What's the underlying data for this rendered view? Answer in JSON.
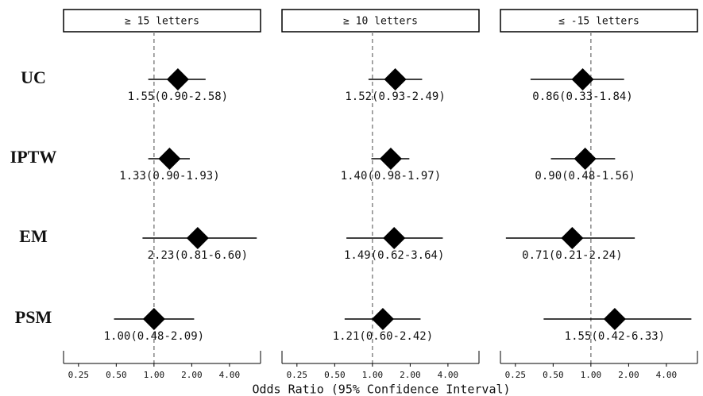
{
  "chart_data": {
    "type": "forest",
    "categories": [
      "UC",
      "IPTW",
      "EM",
      "PSM"
    ],
    "xlabel": "Odds Ratio (95% Confidence Interval)",
    "xlog": true,
    "xlim": [
      0.19,
      7.5
    ],
    "xticks": [
      0.25,
      {
        "value": 0.5,
        "label": "0.50"
      },
      {
        "value": 1,
        "label": "1.00"
      },
      {
        "value": 2,
        "label": "2.00"
      },
      {
        "value": 4,
        "label": "4.00"
      }
    ],
    "reference": 1,
    "color": "#000000",
    "panels": [
      {
        "title": "≥ 15 letters",
        "values": [
          1.55,
          1.33,
          2.23,
          1.0
        ],
        "lower": [
          0.9,
          0.9,
          0.81,
          0.48
        ],
        "upper": [
          2.58,
          1.93,
          6.6,
          2.09
        ],
        "value_labels": [
          "1.55(0.90-2.58)",
          "1.33(0.90-1.93)",
          "2.23(0.81-6.60)",
          "1.00(0.48-2.09)"
        ]
      },
      {
        "title": "≥ 10 letters",
        "values": [
          1.52,
          1.4,
          1.49,
          1.21
        ],
        "lower": [
          0.93,
          0.98,
          0.62,
          0.6
        ],
        "upper": [
          2.49,
          1.97,
          3.64,
          2.42
        ],
        "value_labels": [
          "1.52(0.93-2.49)",
          "1.40(0.98-1.97)",
          "1.49(0.62-3.64)",
          "1.21(0.60-2.42)"
        ]
      },
      {
        "title": "≤ -15 letters",
        "values": [
          0.86,
          0.9,
          0.71,
          1.55
        ],
        "lower": [
          0.33,
          0.48,
          0.21,
          0.42
        ],
        "upper": [
          1.84,
          1.56,
          2.24,
          6.33
        ],
        "value_labels": [
          "0.86(0.33-1.84)",
          "0.90(0.48-1.56)",
          "0.71(0.21-2.24)",
          "1.55(0.42-6.33)"
        ]
      }
    ]
  }
}
